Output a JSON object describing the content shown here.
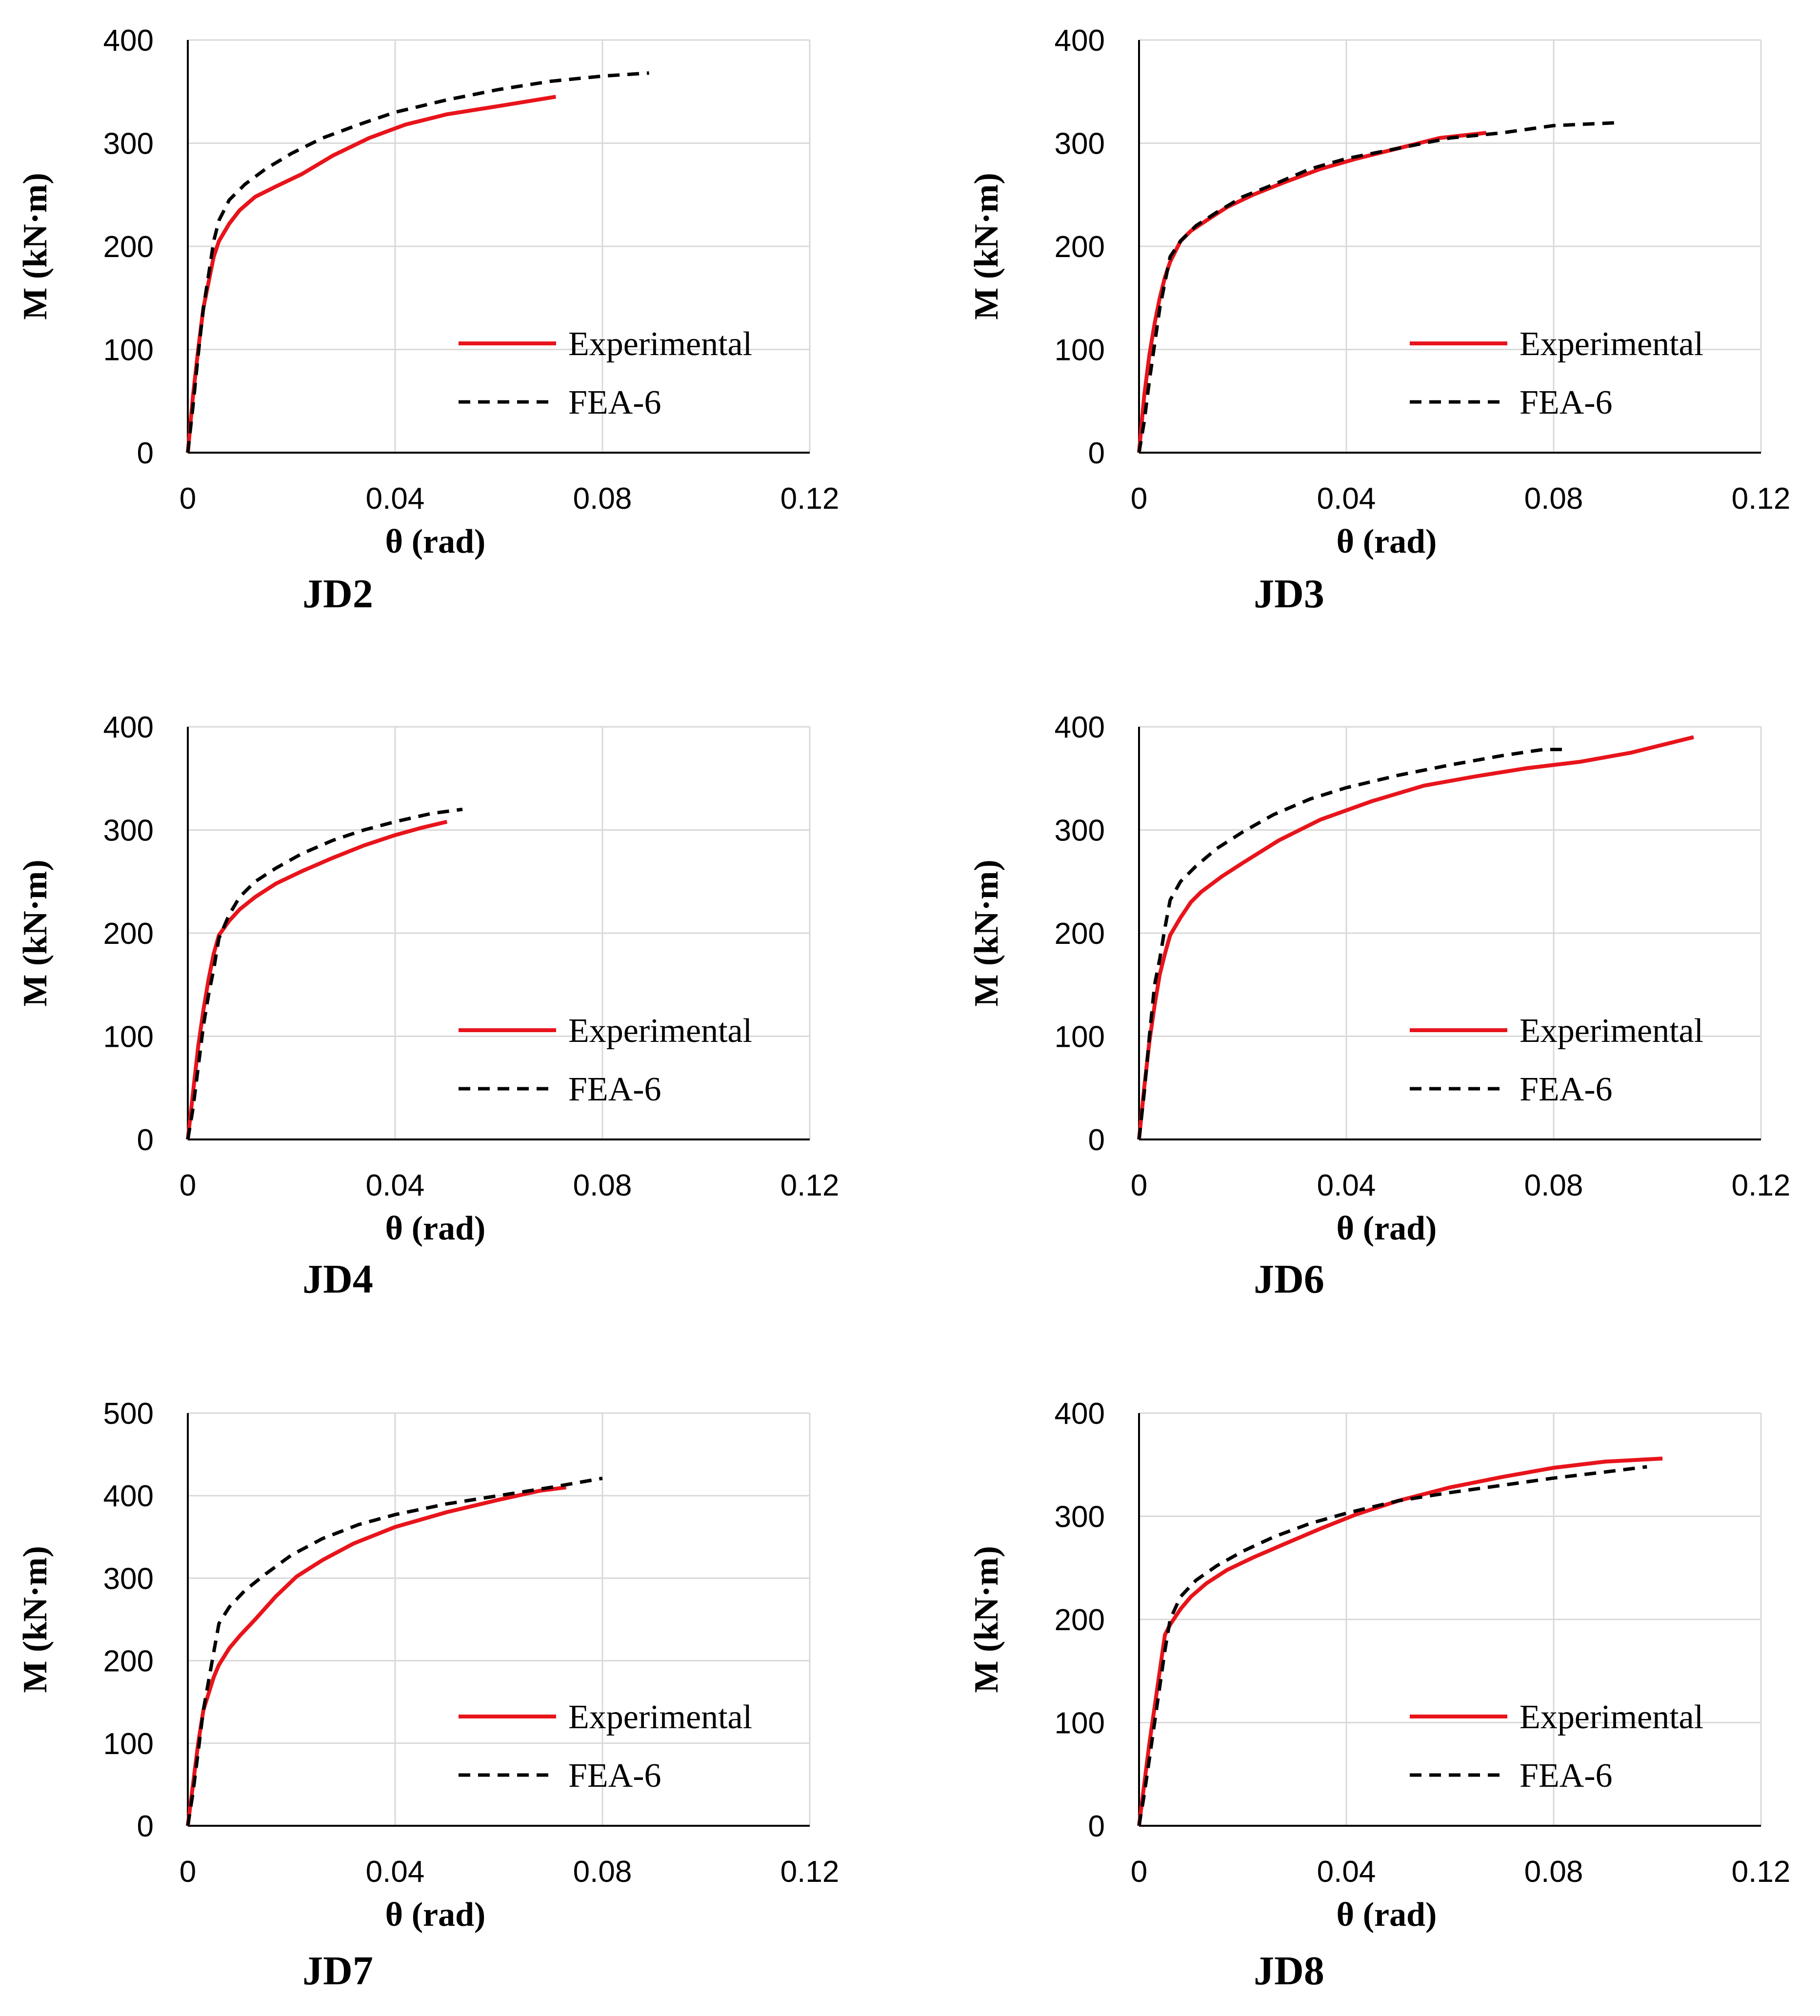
{
  "legend_labels": [
    "Experimental",
    "FEA-6"
  ],
  "colors": {
    "experimental": "#e8141b",
    "fea": "#000000",
    "grid": "#d9d9d9",
    "axis": "#000000"
  },
  "chart_data": [
    {
      "type": "line",
      "title": "JD2",
      "xlabel": "θ (rad)",
      "ylabel": "M (kN·m)",
      "xlim": [
        0,
        0.12
      ],
      "ylim": [
        0,
        400
      ],
      "xticks": [
        "0",
        "0.04",
        "0.08",
        "0.12"
      ],
      "yticks": [
        "0",
        "100",
        "200",
        "300",
        "400"
      ],
      "grid": true,
      "legend_position": "lower-right",
      "series": [
        {
          "name": "Experimental",
          "style": "solid",
          "color": "#e8141b",
          "x": [
            0,
            0.001,
            0.002,
            0.003,
            0.004,
            0.005,
            0.006,
            0.008,
            0.01,
            0.013,
            0.017,
            0.022,
            0.028,
            0.035,
            0.042,
            0.05,
            0.06,
            0.071
          ],
          "y": [
            0,
            55,
            100,
            140,
            165,
            190,
            205,
            222,
            235,
            248,
            258,
            270,
            288,
            305,
            318,
            328,
            336,
            345
          ]
        },
        {
          "name": "FEA-6",
          "style": "dashed",
          "color": "#000000",
          "x": [
            0,
            0.001,
            0.002,
            0.003,
            0.004,
            0.005,
            0.006,
            0.008,
            0.011,
            0.015,
            0.02,
            0.026,
            0.033,
            0.04,
            0.05,
            0.06,
            0.07,
            0.08,
            0.089
          ],
          "y": [
            0,
            45,
            95,
            140,
            172,
            205,
            225,
            245,
            260,
            275,
            290,
            305,
            318,
            330,
            342,
            352,
            360,
            365,
            368
          ]
        }
      ]
    },
    {
      "type": "line",
      "title": "JD3",
      "xlabel": "θ (rad)",
      "ylabel": "M (kN·m)",
      "xlim": [
        0,
        0.12
      ],
      "ylim": [
        0,
        400
      ],
      "xticks": [
        "0",
        "0.04",
        "0.08",
        "0.12"
      ],
      "yticks": [
        "0",
        "100",
        "200",
        "300",
        "400"
      ],
      "grid": true,
      "legend_position": "lower-right",
      "series": [
        {
          "name": "Experimental",
          "style": "solid",
          "color": "#e8141b",
          "x": [
            0,
            0.001,
            0.002,
            0.003,
            0.004,
            0.005,
            0.006,
            0.008,
            0.01,
            0.013,
            0.017,
            0.022,
            0.028,
            0.035,
            0.042,
            0.05,
            0.058,
            0.067
          ],
          "y": [
            0,
            55,
            95,
            125,
            150,
            170,
            185,
            205,
            215,
            225,
            238,
            250,
            262,
            275,
            285,
            295,
            305,
            310
          ]
        },
        {
          "name": "FEA-6",
          "style": "dashed",
          "color": "#000000",
          "x": [
            0,
            0.001,
            0.002,
            0.003,
            0.004,
            0.005,
            0.006,
            0.008,
            0.011,
            0.015,
            0.02,
            0.026,
            0.033,
            0.04,
            0.05,
            0.06,
            0.07,
            0.08,
            0.093
          ],
          "y": [
            0,
            30,
            70,
            105,
            140,
            165,
            190,
            205,
            220,
            233,
            248,
            260,
            275,
            285,
            295,
            305,
            310,
            317,
            320
          ]
        }
      ]
    },
    {
      "type": "line",
      "title": "JD4",
      "xlabel": "θ (rad)",
      "ylabel": "M (kN·m)",
      "xlim": [
        0,
        0.12
      ],
      "ylim": [
        0,
        400
      ],
      "xticks": [
        "0",
        "0.04",
        "0.08",
        "0.12"
      ],
      "yticks": [
        "0",
        "100",
        "200",
        "300",
        "400"
      ],
      "grid": true,
      "legend_position": "lower-right",
      "series": [
        {
          "name": "Experimental",
          "style": "solid",
          "color": "#e8141b",
          "x": [
            0,
            0.001,
            0.002,
            0.003,
            0.004,
            0.005,
            0.006,
            0.008,
            0.01,
            0.013,
            0.017,
            0.022,
            0.028,
            0.034,
            0.04,
            0.045,
            0.05
          ],
          "y": [
            0,
            45,
            90,
            125,
            155,
            180,
            198,
            212,
            223,
            235,
            248,
            260,
            273,
            285,
            295,
            302,
            308
          ]
        },
        {
          "name": "FEA-6",
          "style": "dashed",
          "color": "#000000",
          "x": [
            0,
            0.001,
            0.002,
            0.003,
            0.004,
            0.005,
            0.006,
            0.008,
            0.01,
            0.013,
            0.017,
            0.022,
            0.028,
            0.034,
            0.04,
            0.047,
            0.053
          ],
          "y": [
            0,
            30,
            70,
            110,
            140,
            165,
            195,
            218,
            235,
            250,
            263,
            277,
            290,
            300,
            308,
            316,
            320
          ]
        }
      ]
    },
    {
      "type": "line",
      "title": "JD6",
      "xlabel": "θ (rad)",
      "ylabel": "M (kN·m)",
      "xlim": [
        0,
        0.12
      ],
      "ylim": [
        0,
        400
      ],
      "xticks": [
        "0",
        "0.04",
        "0.08",
        "0.12"
      ],
      "yticks": [
        "0",
        "100",
        "200",
        "300",
        "400"
      ],
      "grid": true,
      "legend_position": "lower-right",
      "series": [
        {
          "name": "Experimental",
          "style": "solid",
          "color": "#e8141b",
          "x": [
            0,
            0.001,
            0.002,
            0.003,
            0.004,
            0.005,
            0.006,
            0.008,
            0.01,
            0.012,
            0.016,
            0.02,
            0.027,
            0.035,
            0.045,
            0.055,
            0.065,
            0.075,
            0.085,
            0.095,
            0.107
          ],
          "y": [
            0,
            50,
            95,
            130,
            160,
            180,
            198,
            215,
            230,
            240,
            255,
            268,
            290,
            310,
            328,
            343,
            352,
            360,
            366,
            375,
            390
          ]
        },
        {
          "name": "FEA-6",
          "style": "dashed",
          "color": "#000000",
          "x": [
            0,
            0.001,
            0.002,
            0.003,
            0.004,
            0.005,
            0.006,
            0.008,
            0.011,
            0.015,
            0.02,
            0.026,
            0.033,
            0.04,
            0.05,
            0.06,
            0.07,
            0.078,
            0.083
          ],
          "y": [
            0,
            45,
            100,
            150,
            175,
            205,
            232,
            250,
            265,
            282,
            298,
            315,
            330,
            341,
            353,
            363,
            372,
            378,
            378
          ]
        }
      ]
    },
    {
      "type": "line",
      "title": "JD7",
      "xlabel": "θ (rad)",
      "ylabel": "M (kN·m)",
      "xlim": [
        0,
        0.12
      ],
      "ylim": [
        0,
        500
      ],
      "xticks": [
        "0",
        "0.04",
        "0.08",
        "0.12"
      ],
      "yticks": [
        "0",
        "100",
        "200",
        "300",
        "400",
        "500"
      ],
      "grid": true,
      "legend_position": "lower-right",
      "series": [
        {
          "name": "Experimental",
          "style": "solid",
          "color": "#e8141b",
          "x": [
            0,
            0.001,
            0.002,
            0.003,
            0.004,
            0.005,
            0.006,
            0.008,
            0.01,
            0.013,
            0.017,
            0.021,
            0.026,
            0.032,
            0.04,
            0.05,
            0.06,
            0.068,
            0.073
          ],
          "y": [
            0,
            50,
            100,
            140,
            160,
            180,
            195,
            215,
            230,
            250,
            278,
            302,
            322,
            342,
            362,
            380,
            395,
            406,
            410
          ]
        },
        {
          "name": "FEA-6",
          "style": "dashed",
          "color": "#000000",
          "x": [
            0,
            0.001,
            0.002,
            0.003,
            0.004,
            0.005,
            0.006,
            0.008,
            0.011,
            0.015,
            0.02,
            0.026,
            0.033,
            0.04,
            0.05,
            0.06,
            0.07,
            0.08
          ],
          "y": [
            0,
            40,
            90,
            140,
            175,
            210,
            245,
            265,
            285,
            305,
            328,
            348,
            365,
            377,
            390,
            400,
            410,
            421
          ]
        }
      ]
    },
    {
      "type": "line",
      "title": "JD8",
      "xlabel": "θ (rad)",
      "ylabel": "M (kN·m)",
      "xlim": [
        0,
        0.12
      ],
      "ylim": [
        0,
        400
      ],
      "xticks": [
        "0",
        "0.04",
        "0.08",
        "0.12"
      ],
      "yticks": [
        "0",
        "100",
        "200",
        "300",
        "400"
      ],
      "grid": true,
      "legend_position": "lower-right",
      "series": [
        {
          "name": "Experimental",
          "style": "solid",
          "color": "#e8141b",
          "x": [
            0,
            0.001,
            0.002,
            0.003,
            0.004,
            0.005,
            0.006,
            0.008,
            0.01,
            0.013,
            0.017,
            0.022,
            0.028,
            0.035,
            0.042,
            0.05,
            0.06,
            0.07,
            0.08,
            0.09,
            0.101
          ],
          "y": [
            0,
            40,
            80,
            115,
            150,
            185,
            195,
            210,
            222,
            235,
            248,
            260,
            273,
            288,
            302,
            315,
            328,
            338,
            347,
            353,
            356
          ]
        },
        {
          "name": "FEA-6",
          "style": "dashed",
          "color": "#000000",
          "x": [
            0,
            0.001,
            0.002,
            0.003,
            0.004,
            0.005,
            0.006,
            0.008,
            0.011,
            0.015,
            0.02,
            0.026,
            0.033,
            0.04,
            0.05,
            0.06,
            0.07,
            0.08,
            0.09,
            0.098
          ],
          "y": [
            0,
            30,
            65,
            100,
            135,
            170,
            200,
            222,
            238,
            252,
            266,
            280,
            293,
            303,
            315,
            323,
            330,
            337,
            343,
            348
          ]
        }
      ]
    }
  ]
}
